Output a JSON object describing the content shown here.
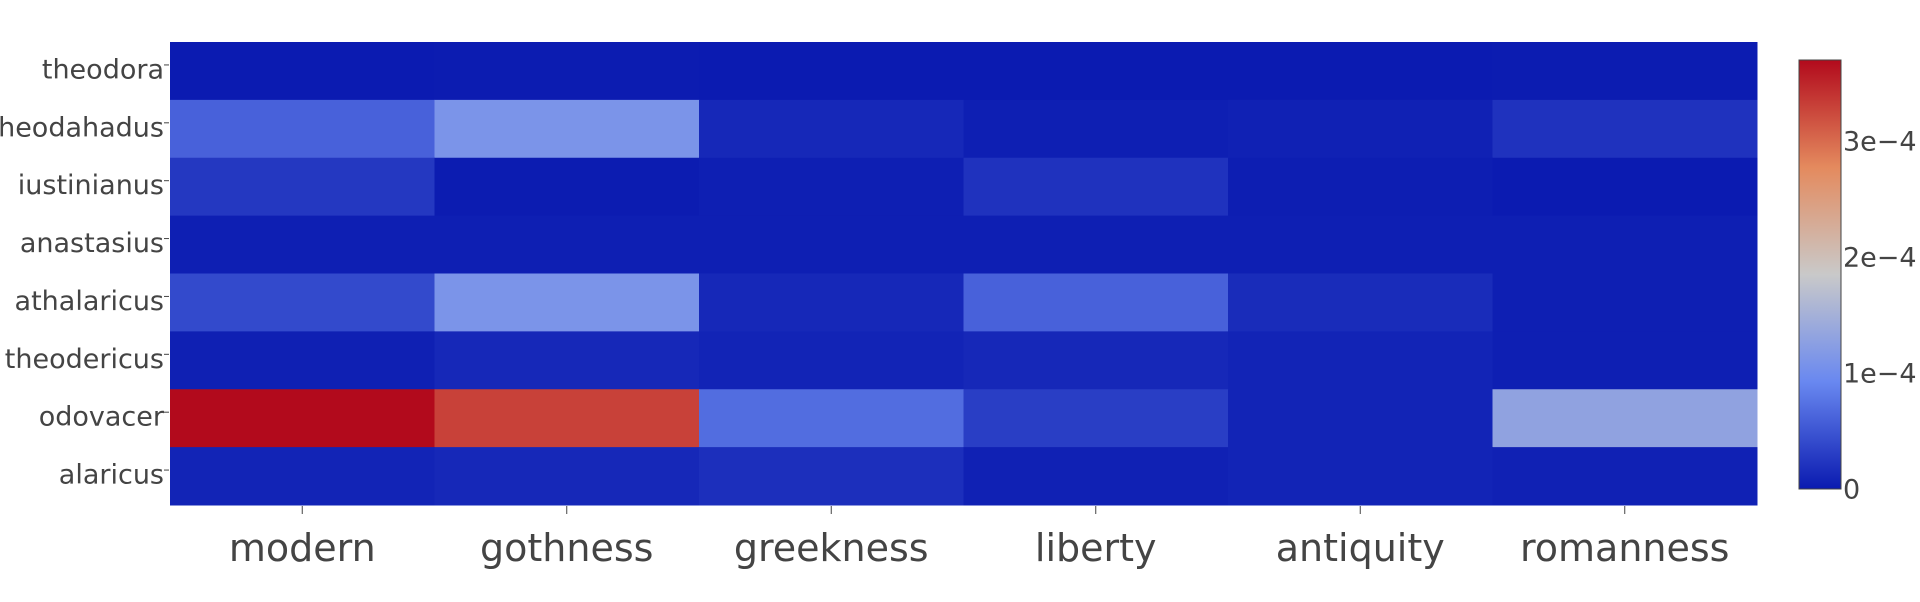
{
  "chart_data": {
    "type": "heatmap",
    "x": [
      "modern",
      "gothness",
      "greekness",
      "liberty",
      "antiquity",
      "romanness"
    ],
    "y": [
      "theodora",
      "theodahadus",
      "iustinianus",
      "anastasius",
      "athalaricus",
      "theodericus",
      "odovacer",
      "alaricus"
    ],
    "z": [
      [
        1e-06,
        2e-06,
        1e-06,
        1e-06,
        1e-06,
        2e-06
      ],
      [
        6e-05,
        0.00011,
        1.2e-05,
        4e-06,
        6e-06,
        2e-05
      ],
      [
        2.5e-05,
        2e-06,
        4e-06,
        2e-05,
        3e-06,
        1e-06
      ],
      [
        4e-06,
        4e-06,
        4e-06,
        4e-06,
        4e-06,
        4e-06
      ],
      [
        4e-05,
        0.00011,
        1.2e-05,
        6e-05,
        1.5e-05,
        4e-06
      ],
      [
        5e-06,
        1.2e-05,
        8e-06,
        1.2e-05,
        8e-06,
        4e-06
      ],
      [
        0.00037,
        0.00033,
        7e-05,
        3e-05,
        8e-06,
        0.00013
      ],
      [
        8e-06,
        1.2e-05,
        1.8e-05,
        6e-06,
        8e-06,
        6e-06
      ]
    ],
    "zlim": [
      0,
      0.00037
    ],
    "colorscale": [
      "#0a1ab0",
      "#6988f0",
      "#c9c9c9",
      "#e48a5e",
      "#b20a1c"
    ],
    "colorbar": {
      "tick_values": [
        0,
        0.0001,
        0.0002,
        0.0003
      ],
      "tick_labels": [
        "0",
        "1e−4",
        "2e−4",
        "3e−4"
      ]
    },
    "title": "",
    "xlabel": "",
    "ylabel": ""
  }
}
